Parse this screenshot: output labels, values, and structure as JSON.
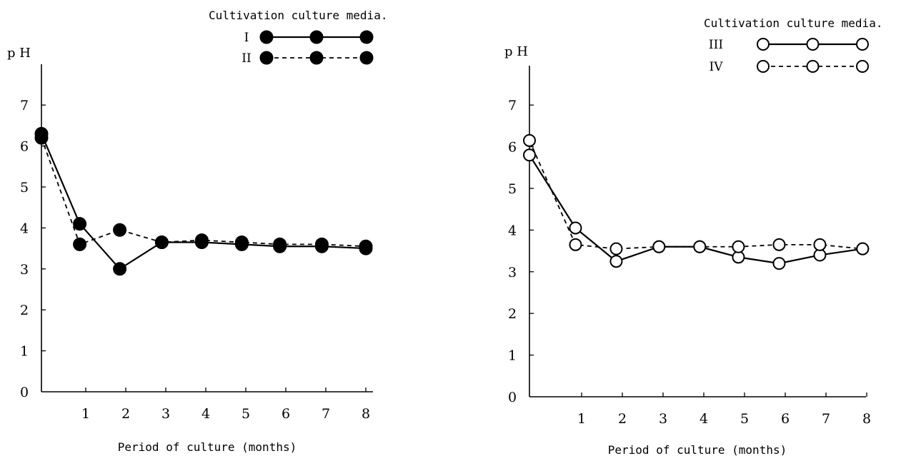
{
  "chart_data": [
    {
      "type": "line",
      "ylabel": "p H",
      "xlabel": "Period of culture (months)",
      "legend_title": "Cultivation culture media.",
      "legend_placement": "top-right",
      "xlim": [
        0,
        8
      ],
      "ylim": [
        0,
        8
      ],
      "x_ticks": [
        "1",
        "2",
        "3",
        "4",
        "5",
        "6",
        "7",
        "8"
      ],
      "y_ticks": [
        "0",
        "1",
        "2",
        "3",
        "4",
        "5",
        "6",
        "7"
      ],
      "grid": false,
      "marker": "filled-circle",
      "series": [
        {
          "name": "I",
          "style": "solid",
          "points": [
            [
              0,
              6.3
            ],
            [
              0.85,
              4.1
            ],
            [
              1.85,
              3.0
            ],
            [
              2.9,
              3.65
            ],
            [
              3.9,
              3.65
            ],
            [
              4.9,
              3.6
            ],
            [
              5.85,
              3.55
            ],
            [
              6.9,
              3.55
            ],
            [
              8.0,
              3.5
            ]
          ]
        },
        {
          "name": "II",
          "style": "dashed",
          "points": [
            [
              0,
              6.2
            ],
            [
              0.85,
              3.6
            ],
            [
              1.85,
              3.95
            ],
            [
              2.9,
              3.65
            ],
            [
              3.9,
              3.7
            ],
            [
              4.9,
              3.65
            ],
            [
              5.85,
              3.6
            ],
            [
              6.9,
              3.6
            ],
            [
              8.0,
              3.55
            ]
          ]
        }
      ]
    },
    {
      "type": "line",
      "ylabel": "p H",
      "xlabel": "Period of culture (months)",
      "legend_title": "Cultivation culture media.",
      "legend_placement": "top-right",
      "xlim": [
        0,
        8
      ],
      "ylim": [
        0,
        8
      ],
      "x_ticks": [
        "1",
        "2",
        "3",
        "4",
        "5",
        "6",
        "7",
        "8"
      ],
      "y_ticks": [
        "0",
        "1",
        "2",
        "3",
        "4",
        "5",
        "6",
        "7"
      ],
      "grid": false,
      "marker": "open-circle",
      "series": [
        {
          "name": "III",
          "style": "solid",
          "points": [
            [
              0,
              5.8
            ],
            [
              0.85,
              4.05
            ],
            [
              1.85,
              3.25
            ],
            [
              2.9,
              3.6
            ],
            [
              3.9,
              3.6
            ],
            [
              4.85,
              3.35
            ],
            [
              5.85,
              3.2
            ],
            [
              6.85,
              3.4
            ],
            [
              7.9,
              3.55
            ]
          ]
        },
        {
          "name": "IV",
          "style": "dashed",
          "points": [
            [
              0,
              6.15
            ],
            [
              0.85,
              3.65
            ],
            [
              1.85,
              3.55
            ],
            [
              2.9,
              3.6
            ],
            [
              3.9,
              3.6
            ],
            [
              4.85,
              3.6
            ],
            [
              5.85,
              3.65
            ],
            [
              6.85,
              3.65
            ],
            [
              7.9,
              3.55
            ]
          ]
        }
      ]
    }
  ]
}
